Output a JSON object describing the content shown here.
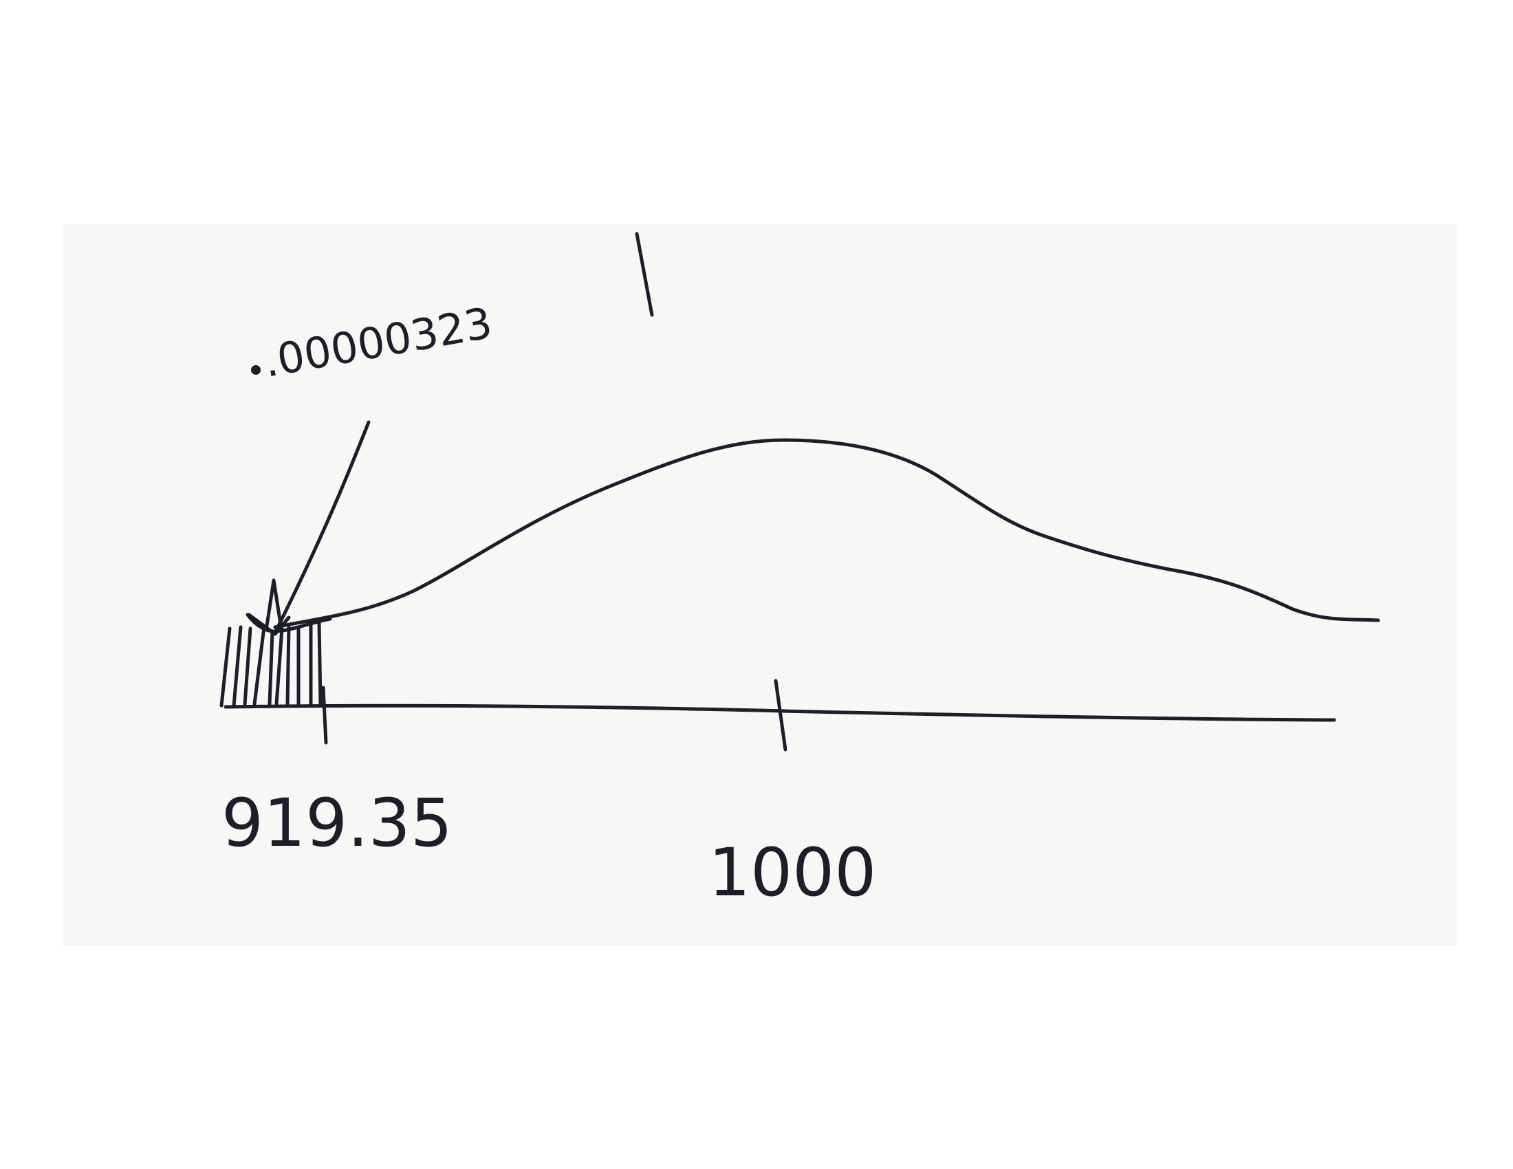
{
  "diagram": {
    "type": "distribution-curve-sketch",
    "annotation_value": ".00000323",
    "annotation_extra_mark": "|",
    "tick_labels": {
      "left": "919.35",
      "center": "1000"
    },
    "ink_color": "#1c1f2a",
    "paper_color": "#f7f7f6"
  }
}
